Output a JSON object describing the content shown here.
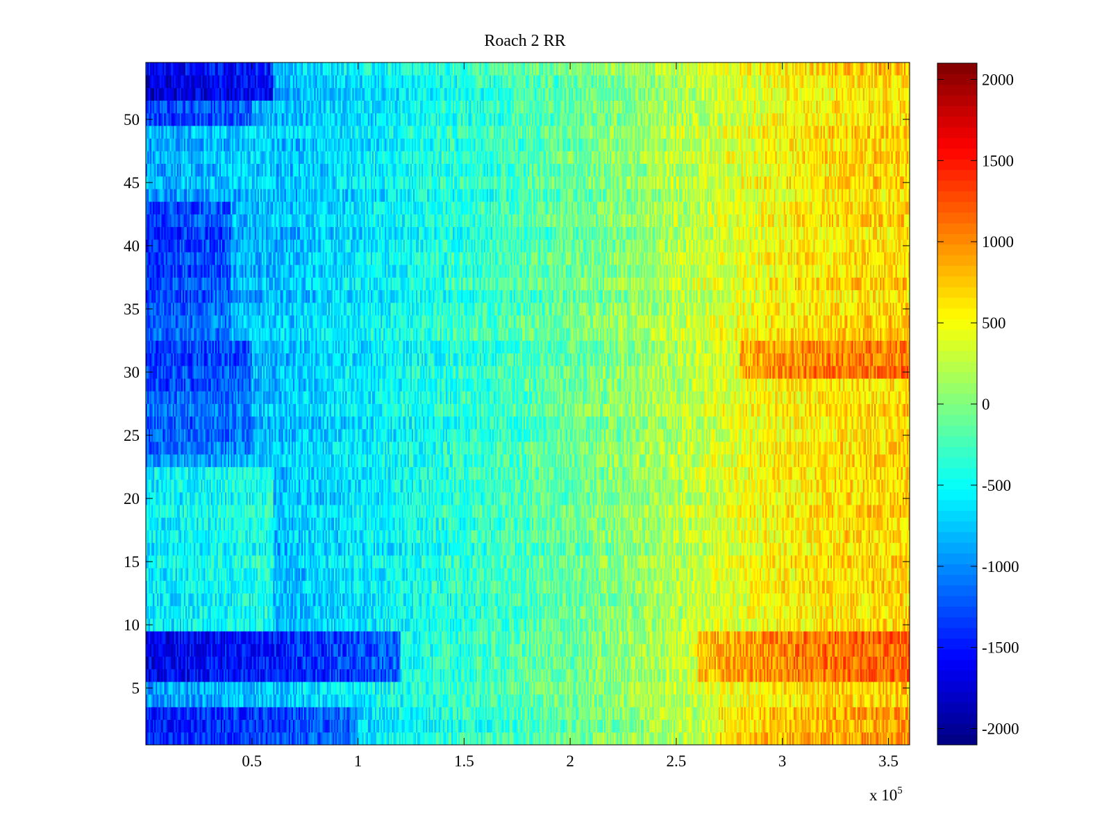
{
  "chart_data": {
    "type": "heatmap",
    "title": "Roach 2 RR",
    "xlabel": "",
    "ylabel": "",
    "x_multiplier_label": "x 10",
    "x_multiplier_exponent": "5",
    "xlim": [
      0,
      3.6
    ],
    "ylim": [
      0.5,
      54.5
    ],
    "x_ticks": [
      0.5,
      1,
      1.5,
      2,
      2.5,
      3,
      3.5
    ],
    "x_tick_labels": [
      "0.5",
      "1",
      "1.5",
      "2",
      "2.5",
      "3",
      "3.5"
    ],
    "y_ticks": [
      5,
      10,
      15,
      20,
      25,
      30,
      35,
      40,
      45,
      50
    ],
    "y_tick_labels": [
      "5",
      "10",
      "15",
      "20",
      "25",
      "30",
      "35",
      "40",
      "45",
      "50"
    ],
    "n_rows": 54,
    "colormap": "jet",
    "clim": [
      -2100,
      2100
    ],
    "colorbar_ticks": [
      2000,
      1500,
      1000,
      500,
      0,
      -500,
      -1000,
      -1500,
      -2000
    ],
    "colorbar_tick_labels": [
      "2000",
      "1500",
      "1000",
      "500",
      "0",
      "-500",
      "-1000",
      "-1500",
      "-2000"
    ],
    "x_sample_points": [
      0,
      0.3,
      0.6,
      0.9,
      1.2,
      1.5,
      1.8,
      2.1,
      2.4,
      2.7,
      3.0,
      3.3,
      3.6
    ],
    "trend_values": [
      -1000,
      -900,
      -800,
      -650,
      -500,
      -350,
      -200,
      -50,
      150,
      350,
      550,
      650,
      700
    ],
    "row_offsets": [
      {
        "rows": [
          1,
          3
        ],
        "x_range": [
          0,
          1.0
        ],
        "offset": -500
      },
      {
        "rows": [
          1,
          3
        ],
        "x_range": [
          2.7,
          3.6
        ],
        "offset": 250
      },
      {
        "rows": [
          6,
          9
        ],
        "x_range": [
          0,
          1.2
        ],
        "offset": -700
      },
      {
        "rows": [
          6,
          9
        ],
        "x_range": [
          2.6,
          3.6
        ],
        "offset": 450
      },
      {
        "rows": [
          10,
          22
        ],
        "x_range": [
          0,
          0.6
        ],
        "offset": 400
      },
      {
        "rows": [
          24,
          28
        ],
        "x_range": [
          0,
          0.5
        ],
        "offset": -200
      },
      {
        "rows": [
          29,
          32
        ],
        "x_range": [
          0,
          0.5
        ],
        "offset": -350
      },
      {
        "rows": [
          30,
          32
        ],
        "x_range": [
          2.8,
          3.6
        ],
        "offset": 450
      },
      {
        "rows": [
          33,
          36
        ],
        "x_range": [
          0,
          0.4
        ],
        "offset": -250
      },
      {
        "rows": [
          37,
          43
        ],
        "x_range": [
          0,
          0.4
        ],
        "offset": -350
      },
      {
        "rows": [
          44,
          49
        ],
        "x_range": [
          0,
          0.6
        ],
        "offset": 100
      },
      {
        "rows": [
          50,
          51
        ],
        "x_range": [
          0,
          0.5
        ],
        "offset": -300
      },
      {
        "rows": [
          52,
          54
        ],
        "x_range": [
          0,
          0.6
        ],
        "offset": -700
      }
    ],
    "noise_amplitude": 320,
    "n_columns_rendered": 540
  }
}
